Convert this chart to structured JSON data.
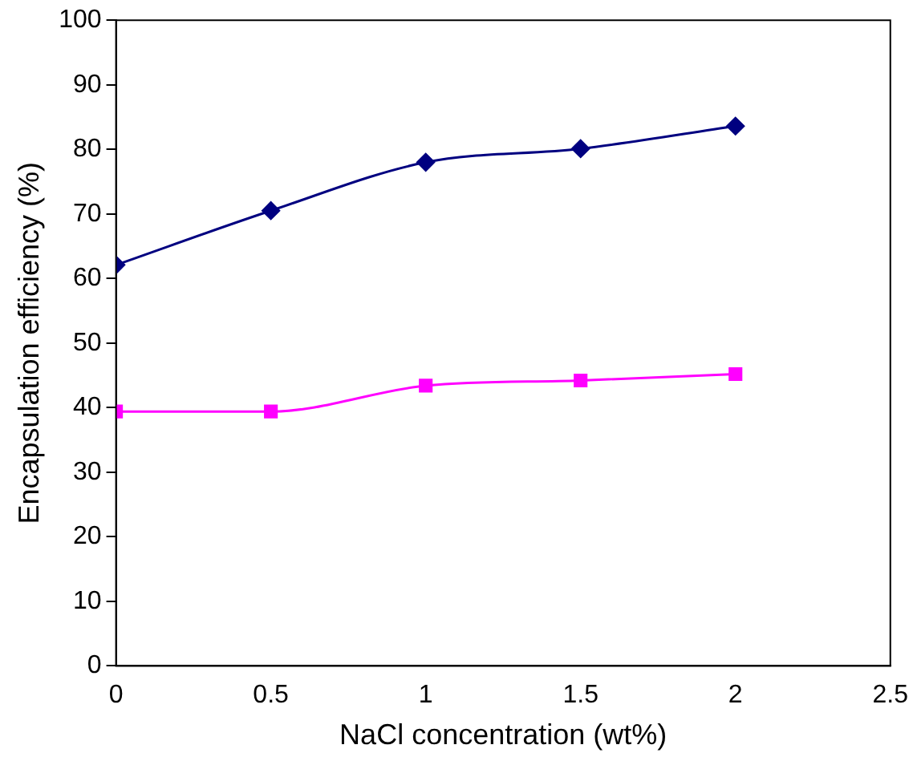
{
  "chart_data": {
    "type": "line",
    "xlabel": "NaCl concentration (wt%)",
    "ylabel": "Encapsulation efficiency (%)",
    "x": [
      0,
      0.5,
      1,
      1.5,
      2
    ],
    "xlim": [
      0,
      2.5
    ],
    "xticks": [
      0,
      0.5,
      1,
      1.5,
      2,
      2.5
    ],
    "ylim": [
      0,
      100
    ],
    "yticks": [
      0,
      10,
      20,
      30,
      40,
      50,
      60,
      70,
      80,
      90,
      100
    ],
    "grid": false,
    "legend": false,
    "series": [
      {
        "color": "#000080",
        "marker": "diamond",
        "values": [
          62.1,
          70.5,
          78.0,
          80.1,
          83.6
        ]
      },
      {
        "color": "#ff00ff",
        "marker": "square",
        "values": [
          39.4,
          39.4,
          43.4,
          44.2,
          45.2
        ]
      }
    ]
  }
}
